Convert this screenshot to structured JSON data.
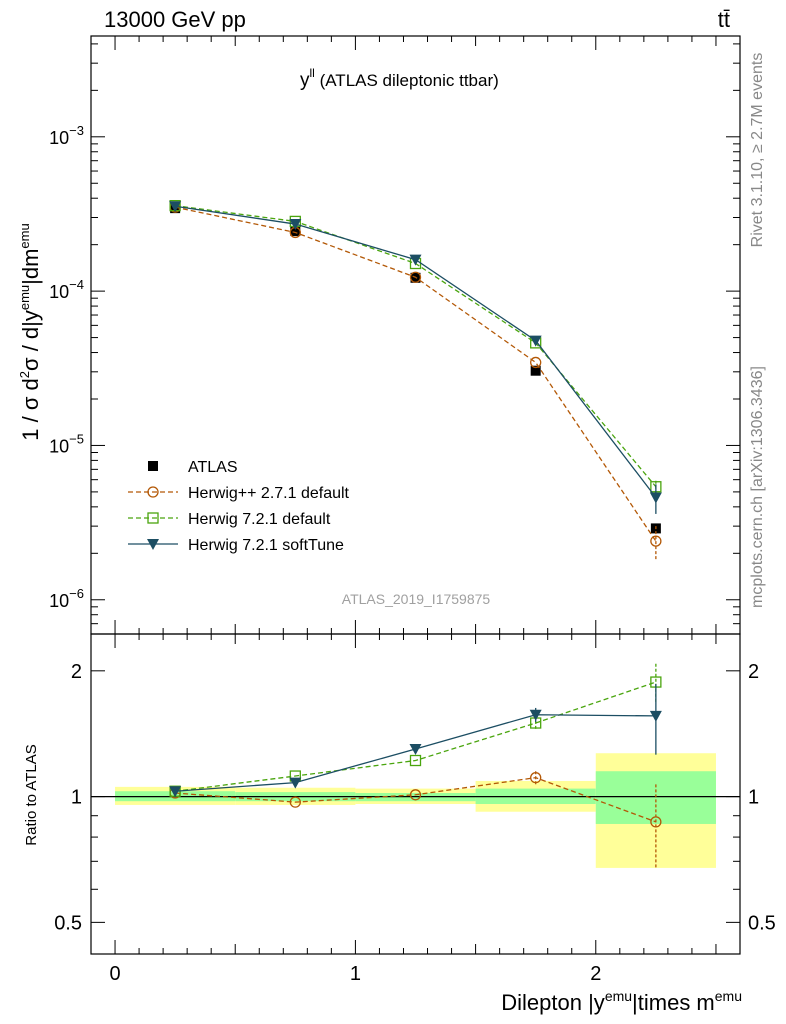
{
  "header": {
    "left": "13000 GeV pp",
    "right": "tt̄"
  },
  "side_texts": {
    "rivet": "Rivet 3.1.10, ≥ 2.7M events",
    "mcplots": "mcplots.cern.ch [arXiv:1306.3436]"
  },
  "watermark": "ATLAS_2019_I1759875",
  "colors": {
    "atlas": "#000000",
    "herwigpp": "#b35806",
    "herwig721": "#4aa50e",
    "softtune": "#1c4e63",
    "band_total": "#ffff99",
    "band_stat": "#99ff99"
  },
  "chart_data": [
    {
      "type": "line",
      "title": "y^ll (ATLAS dileptonic ttbar)",
      "title_main": "y",
      "title_sup": "ll",
      "title_rest": " (ATLAS dileptonic ttbar)",
      "ylabel": "1 / σ  d²σ / d|y^emu|dm^emu",
      "ylabel_parts": [
        "1 / σ  d",
        "2",
        "σ / d|y",
        "emu",
        "|dm",
        "emu"
      ],
      "yscale": "log",
      "ylim": [
        6e-07,
        0.0045
      ],
      "xlim": [
        -0.1,
        2.6
      ],
      "y_ticks": [
        {
          "value": 0.001,
          "base": "10",
          "exp": "−3"
        },
        {
          "value": 0.0001,
          "base": "10",
          "exp": "−4"
        },
        {
          "value": 1e-05,
          "base": "10",
          "exp": "−5"
        },
        {
          "value": 1e-06,
          "base": "10",
          "exp": "−6"
        }
      ],
      "legend_position": "lower-left",
      "x": [
        0.25,
        0.75,
        1.25,
        1.75,
        2.25
      ],
      "series": [
        {
          "name": "ATLAS",
          "style": "data",
          "values": [
            0.000345,
            0.000245,
            0.000122,
            3.05e-05,
            2.9e-06
          ]
        },
        {
          "name": "Herwig++ 2.7.1 default",
          "style": "open-circle-dashed",
          "values": [
            0.00035,
            0.00024,
            0.000123,
            3.45e-05,
            2.4e-06
          ],
          "errors": [
            0,
            0,
            0,
            0,
            6e-07
          ]
        },
        {
          "name": "Herwig 7.2.1 default",
          "style": "open-square-dashed",
          "values": [
            0.000358,
            0.000283,
            0.000151,
            4.62e-05,
            5.4e-06
          ],
          "errors": [
            0,
            0,
            0,
            0,
            5e-07
          ]
        },
        {
          "name": "Herwig 7.2.1 softTune",
          "style": "filled-triangle-solid",
          "values": [
            0.000355,
            0.000272,
            0.00016,
            4.78e-05,
            4.6e-06
          ],
          "errors": [
            0,
            0,
            0,
            0,
            1e-06
          ]
        }
      ]
    },
    {
      "type": "line",
      "ylabel": "Ratio to ATLAS",
      "xlabel": "Dilepton |y^emu|times m^emu",
      "xlabel_parts": [
        "Dilepton |y",
        "emu",
        "|times m",
        "emu"
      ],
      "yscale": "log",
      "ylim": [
        0.42,
        2.45
      ],
      "xlim": [
        -0.1,
        2.6
      ],
      "y_ticks": [
        "0.5",
        "1",
        "2"
      ],
      "x_ticks": [
        "0",
        "1",
        "2"
      ],
      "bins": [
        [
          0,
          0.5
        ],
        [
          0.5,
          1.0
        ],
        [
          1.0,
          1.5
        ],
        [
          1.5,
          2.0
        ],
        [
          2.0,
          2.5
        ]
      ],
      "band_total": [
        [
          0.955,
          1.055
        ],
        [
          0.955,
          1.05
        ],
        [
          0.96,
          1.045
        ],
        [
          0.92,
          1.09
        ],
        [
          0.675,
          1.27
        ]
      ],
      "band_stat": [
        [
          0.975,
          1.03
        ],
        [
          0.975,
          1.025
        ],
        [
          0.975,
          1.02
        ],
        [
          0.96,
          1.045
        ],
        [
          0.86,
          1.15
        ]
      ],
      "x": [
        0.25,
        0.75,
        1.25,
        1.75,
        2.25
      ],
      "series": [
        {
          "name": "Herwig++ 2.7.1 default",
          "values": [
            1.02,
            0.97,
            1.01,
            1.11,
            0.87
          ],
          "errors": [
            0,
            0,
            0,
            0.04,
            0.2
          ]
        },
        {
          "name": "Herwig 7.2.1 default",
          "values": [
            1.03,
            1.12,
            1.22,
            1.5,
            1.88
          ],
          "errors": [
            0,
            0,
            0,
            0.06,
            0.2
          ]
        },
        {
          "name": "Herwig 7.2.1 softTune",
          "values": [
            1.03,
            1.08,
            1.3,
            1.57,
            1.56
          ],
          "errors": [
            0,
            0,
            0,
            0.06,
            0.3
          ]
        }
      ]
    }
  ]
}
